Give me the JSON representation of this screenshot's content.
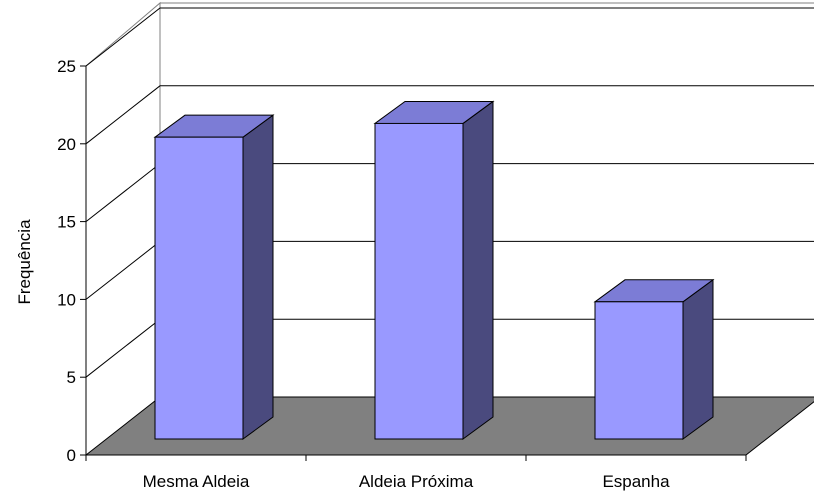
{
  "chart_data": {
    "type": "bar",
    "style": "3d",
    "categories": [
      "Mesma Aldeia",
      "Aldeia Próxima",
      "Espanha"
    ],
    "values": [
      22,
      23,
      10
    ],
    "ylabel": "Frequência",
    "ylim": [
      0,
      25
    ],
    "yticks": [
      0,
      5,
      10,
      15,
      20,
      25
    ],
    "grid": true,
    "legend": "none",
    "colors": {
      "bar_front": "#9999ff",
      "bar_side": "#4a4a7e",
      "bar_top": "#7c7cd6",
      "floor": "#808080",
      "grid": "#000000"
    }
  }
}
